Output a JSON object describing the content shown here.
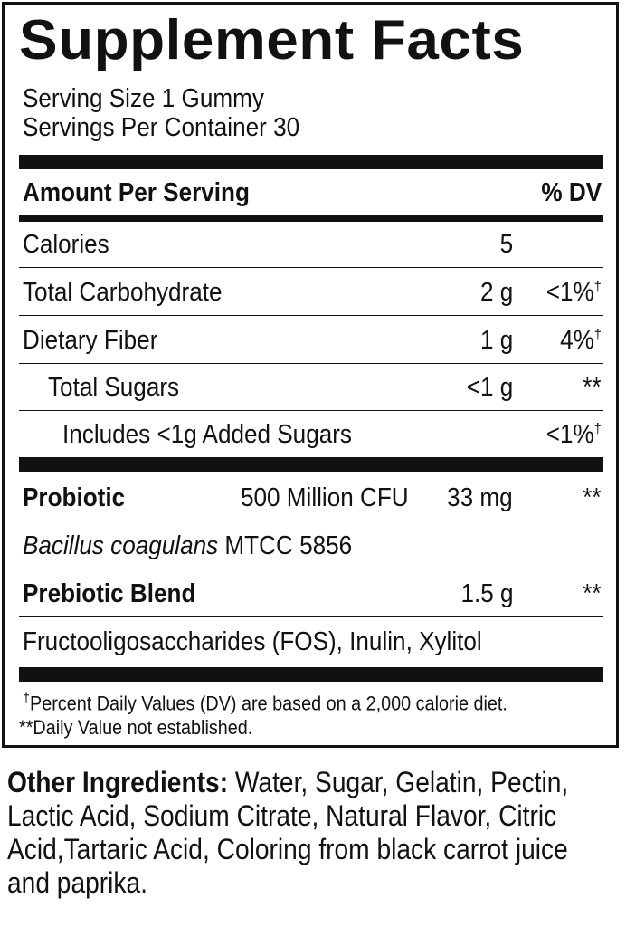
{
  "title": "Supplement Facts",
  "serving_size": "Serving Size 1 Gummy",
  "servings_per_container": "Servings Per Container 30",
  "header": {
    "amount": "Amount Per Serving",
    "dv": "% DV"
  },
  "rows": [
    {
      "name": "Calories",
      "amount": "5",
      "dv": ""
    },
    {
      "name": "Total Carbohydrate",
      "amount": "2 g",
      "dv": "<1%",
      "mark": "†"
    },
    {
      "name": "Dietary Fiber",
      "amount": "1 g",
      "dv": "4%",
      "mark": "†"
    },
    {
      "name": "Total Sugars",
      "amount": "<1 g",
      "dv": "**"
    },
    {
      "name": "Includes <1g Added Sugars",
      "amount": "",
      "dv": "<1%",
      "mark": "†"
    }
  ],
  "probiotic": {
    "name": "Probiotic",
    "cfu": "500 Million CFU",
    "amount": "33 mg",
    "dv": "**",
    "strain_italic": "Bacillus coagulans",
    "strain_id": " MTCC 5856"
  },
  "prebiotic": {
    "name": "Prebiotic Blend",
    "amount": "1.5 g",
    "dv": "**",
    "components": "Fructooligosaccharides (FOS), Inulin, Xylitol"
  },
  "footnotes": {
    "dagger": "†",
    "dagger_text": "Percent Daily Values (DV) are based on a 2,000 calorie diet.",
    "double_star": "**Daily Value not established."
  },
  "other_ingredients": {
    "label": "Other Ingredients:",
    "text": " Water, Sugar, Gelatin, Pectin, Lactic Acid, Sodium Citrate, Natural Flavor, Citric Acid,Tartaric Acid, Coloring from black carrot juice and paprika."
  }
}
